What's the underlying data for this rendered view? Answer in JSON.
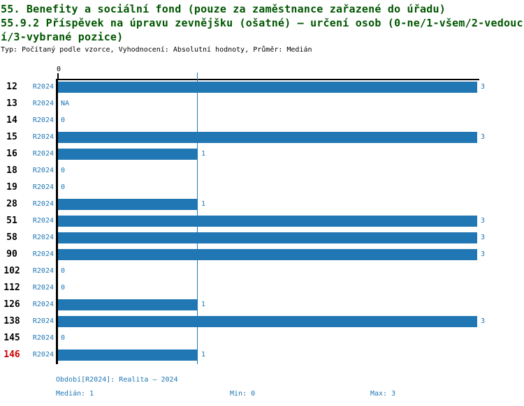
{
  "header": {
    "title_lines": [
      "55. Benefity a sociální fond (pouze za zaměstnance zařazené do úřadu)",
      "55.9.2 Příspěvek na úpravu zevnějšku (ošatné) – určení osob (0-ne/1-všem/2-vedouc",
      "í/3-vybrané pozice)"
    ],
    "meta": "Typ: Počítaný podle vzorce, Vyhodnocení: Absolutní hodnoty, Průměr: Medián"
  },
  "chart_data": {
    "type": "bar",
    "orientation": "horizontal",
    "title": "55.9.2 Příspěvek na úpravu zevnějšku (ošatné) – určení osob (0-ne/1-všem/2-vedoucí/3-vybrané pozice)",
    "series_label": "R2024",
    "categories": [
      "12",
      "13",
      "14",
      "15",
      "16",
      "18",
      "19",
      "28",
      "51",
      "58",
      "90",
      "102",
      "112",
      "126",
      "138",
      "145",
      "146"
    ],
    "values": [
      3,
      null,
      0,
      3,
      1,
      0,
      0,
      1,
      3,
      3,
      3,
      0,
      0,
      1,
      3,
      0,
      1
    ],
    "value_labels": [
      "3",
      "NA",
      "0",
      "3",
      "1",
      "0",
      "0",
      "1",
      "3",
      "3",
      "3",
      "0",
      "0",
      "1",
      "3",
      "0",
      "1"
    ],
    "axis_tick_label": "0",
    "xlim": [
      0,
      3
    ],
    "median_reference_line": 1,
    "highlighted_category": "146",
    "grid": "off",
    "colors": {
      "bar": "#2077b4",
      "blue_text": "#2077b4",
      "row_id": "#000000",
      "highlight": "#cc0000",
      "title_green": "#005500"
    }
  },
  "footer": {
    "period": "Období[R2024]: Realita – 2024",
    "median": "Medián: 1",
    "min": "Min: 0",
    "max": "Max: 3"
  }
}
